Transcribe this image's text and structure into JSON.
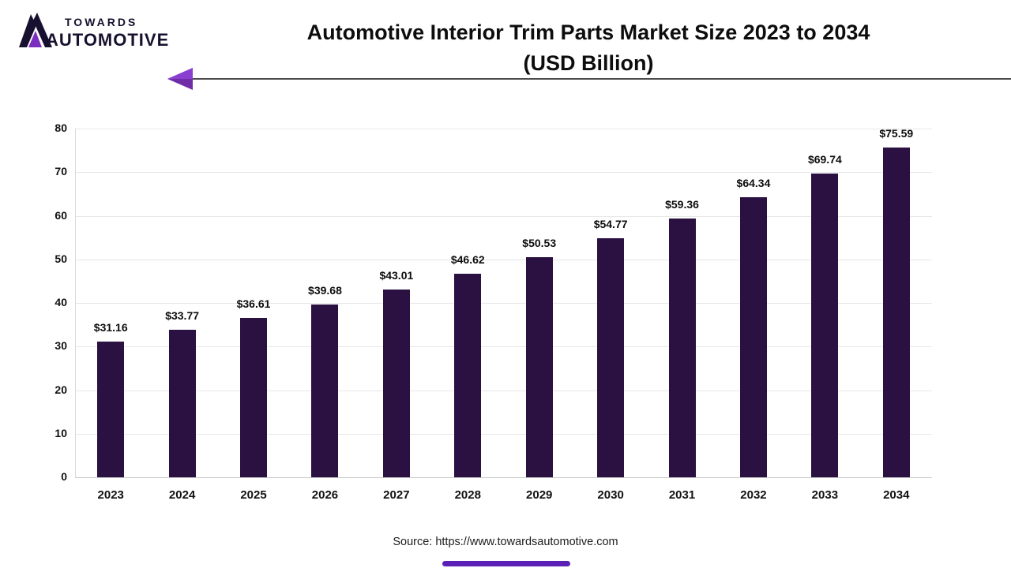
{
  "logo": {
    "line1": "TOWARDS",
    "line2": "AUTOMOTIVE"
  },
  "title": {
    "line1": "Automotive Interior Trim Parts Market Size 2023 to 2034",
    "line2": "(USD Billion)"
  },
  "source": "Source: https://www.towardsautomotive.com",
  "colors": {
    "bar": "#2a1141",
    "accent_purple": "#6f2da8",
    "logo_dark": "#17102e",
    "gridline": "#e7e7e7"
  },
  "chart_data": {
    "type": "bar",
    "title": "Automotive Interior Trim Parts Market Size 2023 to 2034 (USD Billion)",
    "categories": [
      "2023",
      "2024",
      "2025",
      "2026",
      "2027",
      "2028",
      "2029",
      "2030",
      "2031",
      "2032",
      "2033",
      "2034"
    ],
    "values": [
      31.16,
      33.77,
      36.61,
      39.68,
      43.01,
      46.62,
      50.53,
      54.77,
      59.36,
      64.34,
      69.74,
      75.59
    ],
    "value_prefix": "$",
    "xlabel": "",
    "ylabel": "",
    "ylim": [
      0,
      80
    ],
    "ytick_step": 10,
    "grid": true,
    "legend": "none"
  }
}
